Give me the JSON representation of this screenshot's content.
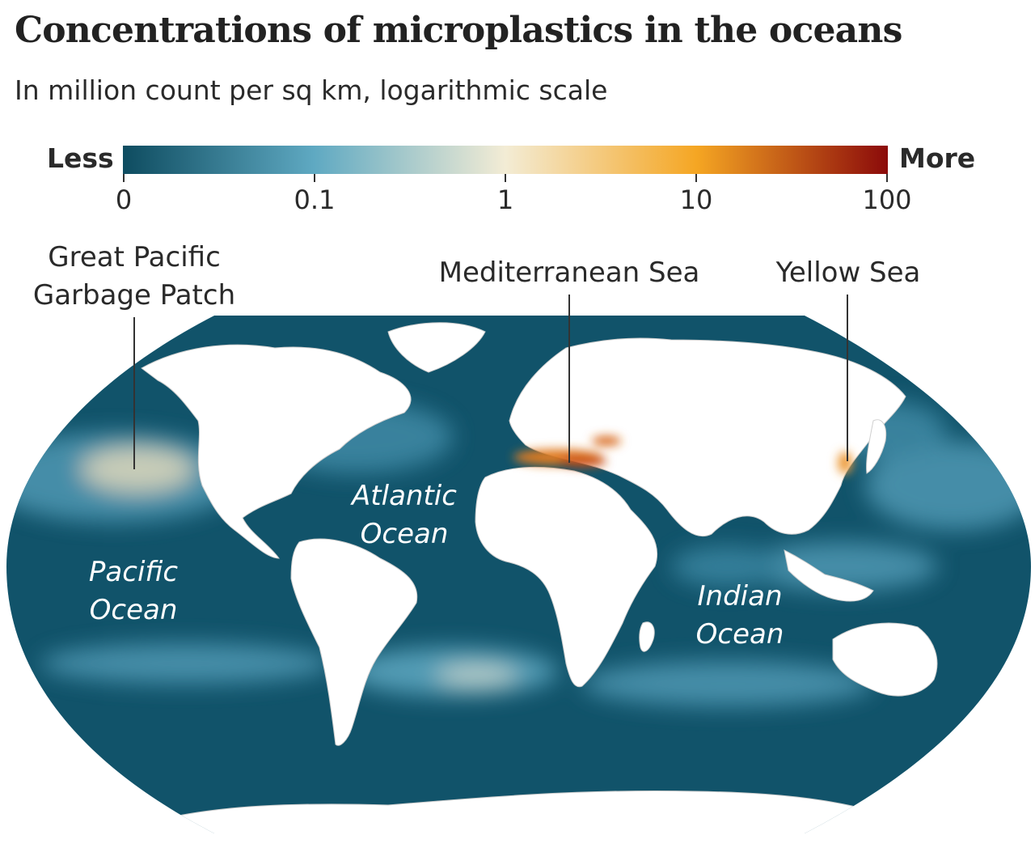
{
  "title": "Concentrations of microplastics in the oceans",
  "subtitle": "In million count per sq km, logarithmic scale",
  "legend": {
    "less_label": "Less",
    "more_label": "More",
    "ticks": [
      "0",
      "0.1",
      "1",
      "10",
      "100"
    ],
    "colors": {
      "low": "#0e4c60",
      "mid_low": "#5fa9c2",
      "mid": "#f3ecd5",
      "mid_high": "#f5a623",
      "high": "#8b0a0a"
    }
  },
  "callouts": {
    "pacific_patch_line1": "Great Pacific",
    "pacific_patch_line2": "Garbage Patch",
    "mediterranean": "Mediterranean Sea",
    "yellow_sea": "Yellow Sea"
  },
  "ocean_labels": {
    "atlantic_line1": "Atlantic",
    "atlantic_line2": "Ocean",
    "pacific_line1": "Pacific",
    "pacific_line2": "Ocean",
    "indian_line1": "Indian",
    "indian_line2": "Ocean"
  },
  "map_colors": {
    "ocean": "#11536a",
    "land": "#ffffff",
    "land_border": "#c9c9c9",
    "hotspot": "#e07b22"
  }
}
